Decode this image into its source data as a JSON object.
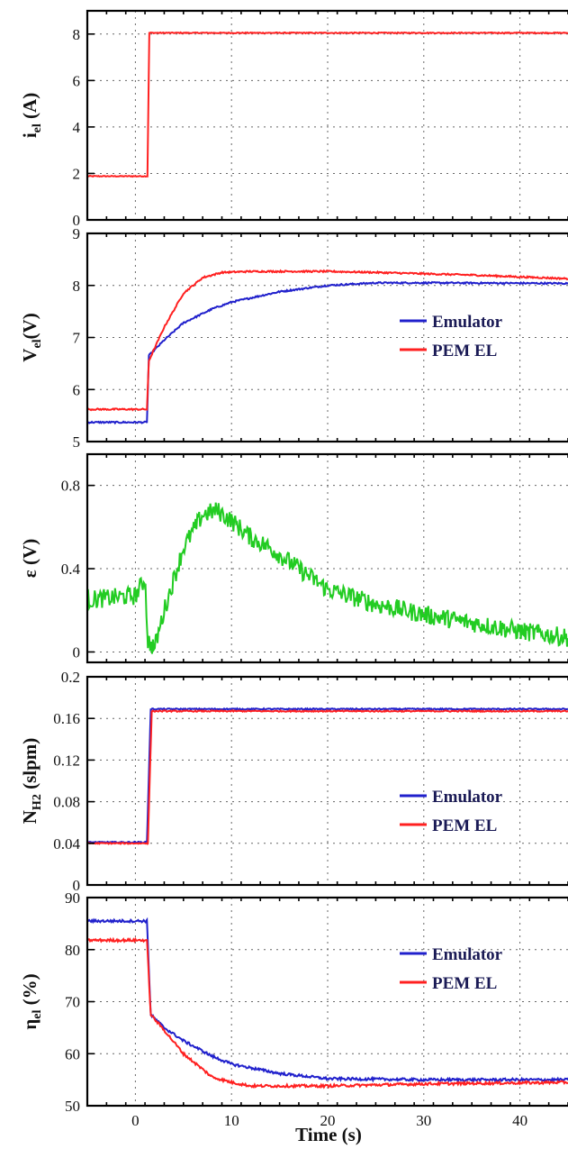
{
  "chart_data": [
    {
      "type": "line",
      "id": "current",
      "ylabel_main": "i",
      "ylabel_sub": "el",
      "ylabel_tail": " (A)",
      "ylim": [
        0,
        9
      ],
      "yticks": [
        "0",
        "2",
        "4",
        "6",
        "8"
      ],
      "ytick_values": [
        0,
        2,
        4,
        6,
        8
      ],
      "grid": true,
      "series": [
        {
          "color": "#ff2020",
          "noise": 0.02,
          "points": [
            [
              -5,
              1.88
            ],
            [
              1.25,
              1.88
            ],
            [
              1.45,
              8.05
            ],
            [
              45,
              8.05
            ]
          ]
        }
      ]
    },
    {
      "type": "line",
      "id": "voltage",
      "ylabel_main": "V",
      "ylabel_sub": "el",
      "ylabel_tail": "(V)",
      "ylim": [
        5,
        9
      ],
      "yticks": [
        "5",
        "6",
        "7",
        "8",
        "9"
      ],
      "ytick_values": [
        5,
        6,
        7,
        8,
        9
      ],
      "grid": true,
      "legend": {
        "position": "center-right",
        "entries": [
          {
            "label": "Emulator",
            "color": "#2020cc"
          },
          {
            "label": "PEM EL",
            "color": "#ff2020"
          }
        ]
      },
      "series": [
        {
          "name": "Emulator",
          "color": "#2020cc",
          "noise": 0.015,
          "points": [
            [
              -5,
              5.37
            ],
            [
              1.2,
              5.37
            ],
            [
              1.4,
              6.65
            ],
            [
              3,
              6.95
            ],
            [
              5,
              7.28
            ],
            [
              8,
              7.55
            ],
            [
              10,
              7.68
            ],
            [
              15,
              7.88
            ],
            [
              20,
              8.0
            ],
            [
              25,
              8.05
            ],
            [
              30,
              8.05
            ],
            [
              45,
              8.04
            ]
          ]
        },
        {
          "name": "PEM EL",
          "color": "#ff2020",
          "noise": 0.015,
          "points": [
            [
              -5,
              5.62
            ],
            [
              1.2,
              5.62
            ],
            [
              1.4,
              6.55
            ],
            [
              3,
              7.2
            ],
            [
              5,
              7.85
            ],
            [
              7,
              8.15
            ],
            [
              9,
              8.25
            ],
            [
              12,
              8.27
            ],
            [
              20,
              8.27
            ],
            [
              25,
              8.25
            ],
            [
              35,
              8.2
            ],
            [
              45,
              8.13
            ]
          ]
        }
      ]
    },
    {
      "type": "line",
      "id": "error",
      "ylabel_main": "ε (V)",
      "ylabel_sub": "",
      "ylabel_tail": "",
      "ylim": [
        -0.05,
        0.95
      ],
      "yticks": [
        "0",
        "0.4",
        "0.8"
      ],
      "ytick_values": [
        0,
        0.4,
        0.8
      ],
      "grid": true,
      "series": [
        {
          "color": "#22cc22",
          "noise": 0.045,
          "points": [
            [
              -5,
              0.25
            ],
            [
              0,
              0.27
            ],
            [
              1.0,
              0.35
            ],
            [
              1.3,
              0.05
            ],
            [
              2,
              0.02
            ],
            [
              3,
              0.2
            ],
            [
              5,
              0.5
            ],
            [
              7,
              0.66
            ],
            [
              8.5,
              0.68
            ],
            [
              10,
              0.63
            ],
            [
              12,
              0.55
            ],
            [
              14,
              0.5
            ],
            [
              17,
              0.4
            ],
            [
              20,
              0.3
            ],
            [
              25,
              0.23
            ],
            [
              30,
              0.18
            ],
            [
              35,
              0.14
            ],
            [
              40,
              0.1
            ],
            [
              45,
              0.07
            ]
          ]
        }
      ]
    },
    {
      "type": "line",
      "id": "hydrogen",
      "ylabel_main": "N",
      "ylabel_sub": "H2",
      "ylabel_tail": " (slpm)",
      "ylim": [
        0,
        0.2
      ],
      "yticks": [
        "0",
        "0.04",
        "0.08",
        "0.12",
        "0.16",
        "0.2"
      ],
      "ytick_values": [
        0,
        0.04,
        0.08,
        0.12,
        0.16,
        0.2
      ],
      "grid": true,
      "legend": {
        "position": "center-right",
        "entries": [
          {
            "label": "Emulator",
            "color": "#2020cc"
          },
          {
            "label": "PEM EL",
            "color": "#ff2020"
          }
        ]
      },
      "series": [
        {
          "name": "Emulator",
          "color": "#2020cc",
          "noise": 0.0006,
          "points": [
            [
              -5,
              0.041
            ],
            [
              1.2,
              0.041
            ],
            [
              1.6,
              0.169
            ],
            [
              45,
              0.169
            ]
          ]
        },
        {
          "name": "PEM EL",
          "color": "#ff2020",
          "noise": 0.0006,
          "points": [
            [
              -5,
              0.04
            ],
            [
              1.3,
              0.04
            ],
            [
              1.7,
              0.167
            ],
            [
              45,
              0.167
            ]
          ]
        }
      ]
    },
    {
      "type": "line",
      "id": "efficiency",
      "ylabel_main": "η",
      "ylabel_sub": "el",
      "ylabel_tail": " (%)",
      "ylim": [
        50,
        90
      ],
      "yticks": [
        "50",
        "60",
        "70",
        "80",
        "90"
      ],
      "ytick_values": [
        50,
        60,
        70,
        80,
        90
      ],
      "xlabel": "Time (s)",
      "xticks": [
        "0",
        "10",
        "20",
        "30",
        "40"
      ],
      "grid": true,
      "legend": {
        "position": "upper-right",
        "entries": [
          {
            "label": "Emulator",
            "color": "#2020cc"
          },
          {
            "label": "PEM EL",
            "color": "#ff2020"
          }
        ]
      },
      "series": [
        {
          "name": "Emulator",
          "color": "#2020cc",
          "noise": 0.25,
          "points": [
            [
              -5,
              85.5
            ],
            [
              1.2,
              85.5
            ],
            [
              1.6,
              67.5
            ],
            [
              3,
              65
            ],
            [
              5,
              62.5
            ],
            [
              8,
              59.5
            ],
            [
              10,
              58
            ],
            [
              15,
              56.2
            ],
            [
              20,
              55.2
            ],
            [
              30,
              55.0
            ],
            [
              45,
              55.0
            ]
          ]
        },
        {
          "name": "PEM EL",
          "color": "#ff2020",
          "noise": 0.25,
          "points": [
            [
              -5,
              81.8
            ],
            [
              1.2,
              81.8
            ],
            [
              1.6,
              67.5
            ],
            [
              3,
              64.5
            ],
            [
              5,
              60
            ],
            [
              8,
              55.5
            ],
            [
              10,
              54.5
            ],
            [
              12,
              53.8
            ],
            [
              20,
              53.8
            ],
            [
              30,
              54.2
            ],
            [
              45,
              54.5
            ]
          ]
        }
      ]
    }
  ],
  "xlim": [
    -5,
    45
  ],
  "xtick_values": [
    0,
    10,
    20,
    30,
    40
  ]
}
